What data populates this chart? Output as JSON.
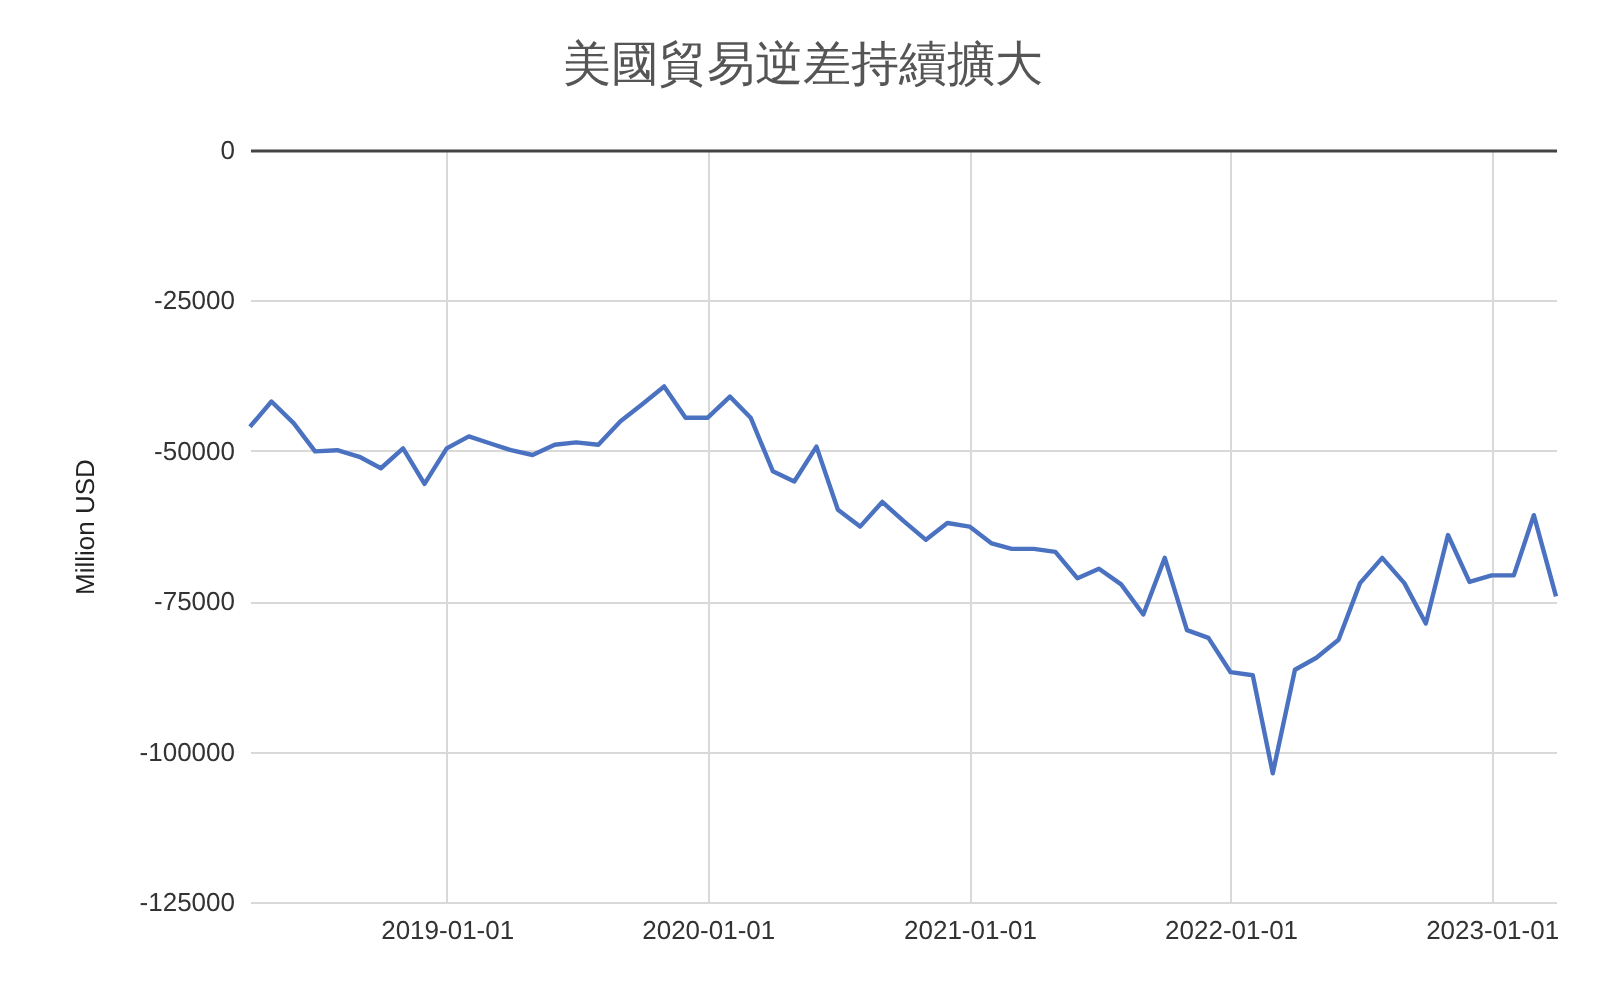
{
  "chart_data": {
    "type": "line",
    "title": "美國貿易逆差持續擴大",
    "ylabel": "Million USD",
    "x": [
      "2018-04",
      "2018-05",
      "2018-06",
      "2018-07",
      "2018-08",
      "2018-09",
      "2018-10",
      "2018-11",
      "2018-12",
      "2019-01",
      "2019-02",
      "2019-03",
      "2019-04",
      "2019-05",
      "2019-06",
      "2019-07",
      "2019-08",
      "2019-09",
      "2019-10",
      "2019-11",
      "2019-12",
      "2020-01",
      "2020-02",
      "2020-03",
      "2020-04",
      "2020-05",
      "2020-06",
      "2020-07",
      "2020-08",
      "2020-09",
      "2020-10",
      "2020-11",
      "2020-12",
      "2021-01",
      "2021-02",
      "2021-03",
      "2021-04",
      "2021-05",
      "2021-06",
      "2021-07",
      "2021-08",
      "2021-09",
      "2021-10",
      "2021-11",
      "2021-12",
      "2022-01",
      "2022-02",
      "2022-03",
      "2022-04",
      "2022-05",
      "2022-06",
      "2022-07",
      "2022-08",
      "2022-09",
      "2022-10",
      "2022-11",
      "2022-12",
      "2023-01",
      "2023-02",
      "2023-03",
      "2023-04"
    ],
    "series": [
      {
        "color": "#4a72c0",
        "values": [
          -46000,
          -41800,
          -45400,
          -50100,
          -49900,
          -51000,
          -52900,
          -49600,
          -55500,
          -49600,
          -47600,
          -48700,
          -49900,
          -50700,
          -49000,
          -48600,
          -49000,
          -45100,
          -42300,
          -39300,
          -44500,
          -44500,
          -41000,
          -44500,
          -53400,
          -55100,
          -49300,
          -59800,
          -62600,
          -58500,
          -61700,
          -64800,
          -62000,
          -62600,
          -65400,
          -66300,
          -66300,
          -66800,
          -71200,
          -69600,
          -72200,
          -77200,
          -67800,
          -79800,
          -81100,
          -86800,
          -87300,
          -103600,
          -86400,
          -84400,
          -81400,
          -72000,
          -67800,
          -72000,
          -78700,
          -64000,
          -71800,
          -70700,
          -70700,
          -60700,
          -74200
        ]
      }
    ],
    "xlim": [
      "2018-04",
      "2023-04"
    ],
    "xticks": [
      "2019-01-01",
      "2020-01-01",
      "2021-01-01",
      "2022-01-01",
      "2023-01-01"
    ],
    "ylim": [
      -125000,
      0
    ],
    "yticks": [
      0,
      -25000,
      -50000,
      -75000,
      -100000,
      -125000
    ],
    "grid": true,
    "line_style": "solid",
    "marker": "none"
  }
}
